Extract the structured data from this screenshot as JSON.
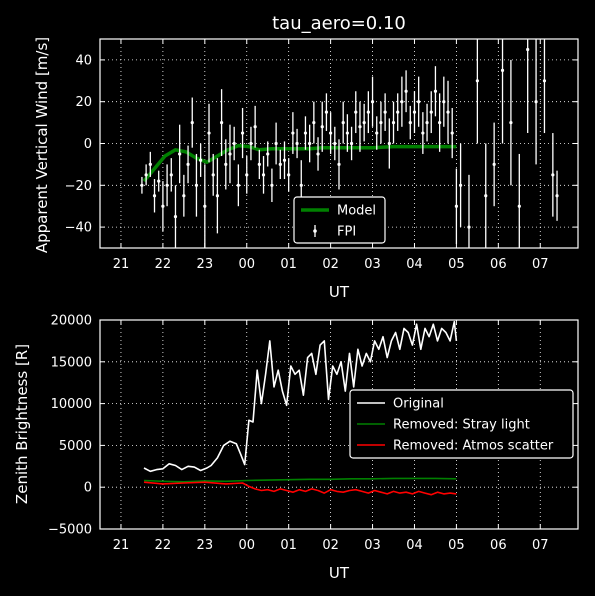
{
  "chart_data": [
    {
      "type": "line",
      "title": "tau_aero=0.10",
      "xlabel": "UT",
      "ylabel": "Apparent Vertical Wind [m/s]",
      "xlim": [
        20.5,
        31.9
      ],
      "ylim": [
        -50,
        50
      ],
      "x_ticks": [
        21,
        22,
        23,
        24,
        25,
        26,
        27,
        28,
        29,
        30,
        31
      ],
      "x_tick_labels": [
        "21",
        "22",
        "23",
        "00",
        "01",
        "02",
        "03",
        "04",
        "05",
        "06",
        "07"
      ],
      "y_ticks": [
        -40,
        -20,
        0,
        20,
        40
      ],
      "y_tick_labels": [
        "−40",
        "−20",
        "0",
        "20",
        "40"
      ],
      "grid": true,
      "legend": {
        "position": "lower-center",
        "entries": [
          "Model",
          "FPI"
        ]
      },
      "series": [
        {
          "name": "Model",
          "color": "#008000",
          "style": "thick-line",
          "x": [
            21.55,
            21.8,
            22.05,
            22.3,
            22.55,
            22.8,
            23.05,
            23.3,
            23.55,
            23.8,
            24.05,
            24.3,
            24.6,
            24.9,
            25.2,
            25.5,
            25.8,
            26.2,
            26.6,
            27.0,
            27.5,
            28.0,
            28.5,
            29.0
          ],
          "y": [
            -18,
            -12,
            -6,
            -3,
            -4,
            -7,
            -9,
            -6,
            -3,
            -1,
            -1.5,
            -3,
            -2.5,
            -2.5,
            -2.5,
            -2.5,
            -2,
            -2,
            -2,
            -2,
            -1.5,
            -1.5,
            -1.5,
            -1.5
          ]
        },
        {
          "name": "FPI",
          "color": "#ffffff",
          "style": "errorbar",
          "x": [
            21.5,
            21.6,
            21.7,
            21.8,
            21.9,
            22.0,
            22.1,
            22.2,
            22.3,
            22.4,
            22.5,
            22.6,
            22.7,
            22.8,
            22.9,
            23.0,
            23.1,
            23.2,
            23.3,
            23.4,
            23.5,
            23.6,
            23.7,
            23.8,
            23.9,
            24.0,
            24.1,
            24.2,
            24.3,
            24.4,
            24.5,
            24.6,
            24.7,
            24.8,
            24.9,
            25.0,
            25.1,
            25.2,
            25.3,
            25.4,
            25.5,
            25.6,
            25.7,
            25.8,
            25.9,
            26.0,
            26.1,
            26.2,
            26.3,
            26.4,
            26.5,
            26.6,
            26.7,
            26.8,
            26.9,
            27.0,
            27.1,
            27.2,
            27.3,
            27.4,
            27.5,
            27.6,
            27.7,
            27.8,
            27.9,
            28.0,
            28.1,
            28.2,
            28.3,
            28.4,
            28.5,
            28.6,
            28.7,
            28.8,
            28.9,
            29.0,
            29.1,
            29.3,
            29.5,
            29.7,
            29.9,
            30.1,
            30.3,
            30.5,
            30.7,
            30.9,
            31.1,
            31.3,
            31.4
          ],
          "y": [
            -20,
            -15,
            -10,
            -25,
            -18,
            -30,
            -20,
            -15,
            -35,
            -5,
            -25,
            -10,
            10,
            -20,
            -8,
            -30,
            5,
            -15,
            -25,
            10,
            -10,
            -5,
            0,
            -20,
            5,
            -15,
            0,
            8,
            -10,
            -15,
            -5,
            -20,
            0,
            -10,
            -8,
            -15,
            5,
            0,
            -20,
            5,
            0,
            10,
            -5,
            8,
            15,
            5,
            0,
            -10,
            10,
            5,
            0,
            15,
            8,
            10,
            15,
            20,
            5,
            10,
            15,
            0,
            10,
            15,
            20,
            25,
            10,
            15,
            20,
            5,
            10,
            15,
            25,
            10,
            20,
            15,
            5,
            -30,
            -20,
            -40,
            30,
            -25,
            -10,
            35,
            10,
            -30,
            45,
            20,
            30,
            -15,
            -25
          ],
          "err": [
            4,
            5,
            6,
            8,
            5,
            12,
            10,
            8,
            15,
            14,
            10,
            9,
            12,
            15,
            8,
            20,
            14,
            10,
            18,
            16,
            12,
            14,
            8,
            10,
            12,
            9,
            8,
            10,
            7,
            9,
            6,
            8,
            10,
            7,
            9,
            8,
            10,
            7,
            12,
            8,
            9,
            10,
            8,
            12,
            9,
            10,
            8,
            12,
            10,
            9,
            8,
            10,
            12,
            9,
            10,
            12,
            8,
            10,
            9,
            12,
            10,
            9,
            12,
            10,
            8,
            10,
            12,
            10,
            9,
            10,
            12,
            14,
            12,
            15,
            12,
            18,
            20,
            25,
            30,
            25,
            20,
            35,
            30,
            25,
            40,
            30,
            25,
            20,
            12
          ]
        }
      ]
    },
    {
      "type": "line",
      "title": "",
      "xlabel": "UT",
      "ylabel": "Zenith Brightness [R]",
      "xlim": [
        20.5,
        31.9
      ],
      "ylim": [
        -5000,
        20000
      ],
      "x_ticks": [
        21,
        22,
        23,
        24,
        25,
        26,
        27,
        28,
        29,
        30,
        31
      ],
      "x_tick_labels": [
        "21",
        "22",
        "23",
        "00",
        "01",
        "02",
        "03",
        "04",
        "05",
        "06",
        "07"
      ],
      "y_ticks": [
        -5000,
        0,
        5000,
        10000,
        15000,
        20000
      ],
      "y_tick_labels": [
        "−5000",
        "0",
        "5000",
        "10000",
        "15000",
        "20000"
      ],
      "grid": true,
      "legend": {
        "position": "right",
        "entries": [
          "Original",
          "Removed: Stray light",
          "Removed: Atmos scatter"
        ]
      },
      "series": [
        {
          "name": "Original",
          "color": "#ffffff",
          "x": [
            21.55,
            21.7,
            21.85,
            22.0,
            22.15,
            22.3,
            22.45,
            22.6,
            22.75,
            22.9,
            23.05,
            23.15,
            23.3,
            23.45,
            23.6,
            23.75,
            23.85,
            23.95,
            24.05,
            24.15,
            24.25,
            24.35,
            24.45,
            24.55,
            24.65,
            24.75,
            24.85,
            24.95,
            25.05,
            25.15,
            25.25,
            25.35,
            25.45,
            25.55,
            25.65,
            25.75,
            25.85,
            25.95,
            26.05,
            26.15,
            26.25,
            26.35,
            26.45,
            26.55,
            26.65,
            26.75,
            26.85,
            26.95,
            27.05,
            27.15,
            27.25,
            27.35,
            27.45,
            27.55,
            27.65,
            27.75,
            27.85,
            27.95,
            28.05,
            28.15,
            28.25,
            28.35,
            28.45,
            28.55,
            28.65,
            28.75,
            28.85,
            28.95,
            29.0
          ],
          "y": [
            2300,
            1900,
            2100,
            2200,
            2800,
            2600,
            2100,
            2500,
            2400,
            2000,
            2300,
            2600,
            3500,
            5000,
            5500,
            5200,
            4000,
            2700,
            8000,
            7800,
            14000,
            10000,
            13500,
            17500,
            12000,
            14000,
            11500,
            9800,
            14500,
            13500,
            14000,
            11000,
            15500,
            16000,
            13500,
            17000,
            17500,
            10500,
            14500,
            13500,
            15000,
            11500,
            16000,
            12000,
            16500,
            14500,
            16000,
            15000,
            17500,
            16500,
            18000,
            15500,
            17500,
            18500,
            16500,
            19000,
            18500,
            17000,
            19500,
            16500,
            19000,
            18000,
            19500,
            17500,
            19000,
            18500,
            17500,
            19800,
            17500
          ]
        },
        {
          "name": "Removed: Stray light",
          "color": "#008000",
          "x": [
            21.55,
            22.0,
            22.5,
            23.0,
            23.5,
            24.0,
            24.5,
            25.0,
            25.5,
            26.0,
            26.5,
            27.0,
            27.5,
            28.0,
            28.5,
            29.0
          ],
          "y": [
            800,
            700,
            650,
            750,
            700,
            800,
            850,
            900,
            950,
            950,
            1000,
            1000,
            1050,
            1050,
            1050,
            1000
          ]
        },
        {
          "name": "Removed: Atmos scatter",
          "color": "#ff0000",
          "x": [
            21.55,
            22.0,
            22.5,
            23.0,
            23.5,
            23.9,
            24.05,
            24.2,
            24.35,
            24.5,
            24.65,
            24.8,
            24.95,
            25.1,
            25.25,
            25.4,
            25.55,
            25.7,
            25.85,
            26.0,
            26.15,
            26.3,
            26.45,
            26.6,
            26.75,
            26.9,
            27.05,
            27.2,
            27.35,
            27.5,
            27.65,
            27.8,
            27.95,
            28.1,
            28.25,
            28.4,
            28.55,
            28.7,
            28.85,
            29.0
          ],
          "y": [
            600,
            400,
            500,
            600,
            400,
            500,
            100,
            -200,
            -400,
            -300,
            -500,
            -200,
            -400,
            -600,
            -300,
            -500,
            -200,
            -400,
            -700,
            -300,
            -500,
            -600,
            -400,
            -300,
            -500,
            -700,
            -400,
            -600,
            -800,
            -500,
            -700,
            -600,
            -800,
            -500,
            -700,
            -900,
            -600,
            -800,
            -700,
            -800
          ]
        }
      ]
    }
  ]
}
